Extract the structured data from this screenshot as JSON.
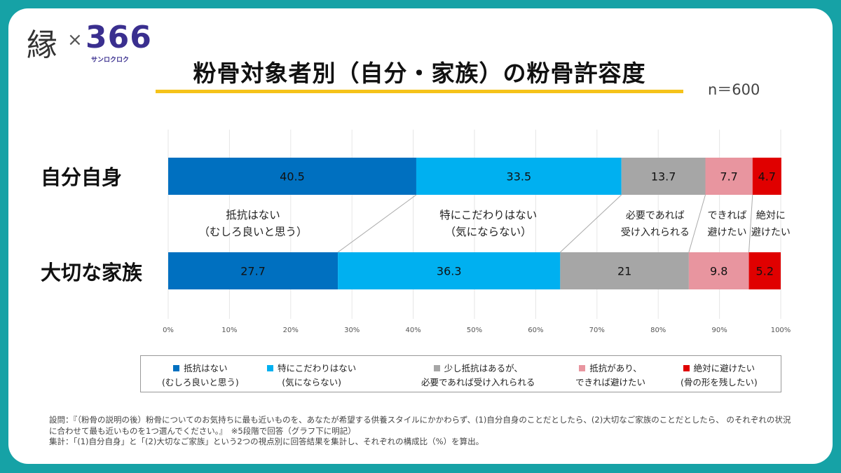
{
  "logo": {
    "kanji": "縁",
    "times": "×",
    "number": "366",
    "kana": "サンロクロク"
  },
  "title": "粉骨対象者別（自分・家族）の粉骨許容度",
  "sample": "n＝600",
  "chart_data": {
    "type": "bar",
    "orientation": "horizontal-stacked-100",
    "title": "粉骨対象者別（自分・家族）の粉骨許容度",
    "categories": [
      "自分自身",
      "大切な家族"
    ],
    "series": [
      {
        "name": "抵抗はない（むしろ良いと思う）",
        "short": [
          "抵抗はない",
          "（むしろ良いと思う）"
        ],
        "legend": [
          "抵抗はない",
          "(むしろ良いと思う)"
        ],
        "color": "#0070c0",
        "values": [
          40.5,
          27.7
        ]
      },
      {
        "name": "特にこだわりはない（気にならない）",
        "short": [
          "特にこだわりはない",
          "（気にならない）"
        ],
        "legend": [
          "特にこだわりはない",
          "(気にならない)"
        ],
        "color": "#00b0f0",
        "values": [
          33.5,
          36.3
        ]
      },
      {
        "name": "少し抵抗はあるが、必要であれば受け入れられる",
        "short": [
          "必要であれば",
          "受け入れられる"
        ],
        "legend": [
          "少し抵抗はあるが、",
          "必要であれば受け入れられる"
        ],
        "color": "#a6a6a6",
        "values": [
          13.7,
          21
        ]
      },
      {
        "name": "抵抗があり、できれば避けたい",
        "short": [
          "できれば",
          "避けたい"
        ],
        "legend": [
          "抵抗があり、",
          "できれば避けたい"
        ],
        "color": "#e8959f",
        "values": [
          7.7,
          9.8
        ]
      },
      {
        "name": "絶対に避けたい（骨の形を残したい）",
        "short": [
          "絶対に",
          "避けたい"
        ],
        "legend": [
          "絶対に避けたい",
          "(骨の形を残したい)"
        ],
        "color": "#e00000",
        "values": [
          4.7,
          5.2
        ]
      }
    ],
    "xticks": [
      "0%",
      "10%",
      "20%",
      "30%",
      "40%",
      "50%",
      "60%",
      "70%",
      "80%",
      "90%",
      "100%"
    ],
    "xlim": [
      0,
      100
    ],
    "grid": true,
    "legend_position": "bottom"
  },
  "footnote": {
    "line1": "設問：『（粉骨の説明の後）粉骨についてのお気持ちに最も近いものを、あなたが希望する供養スタイルにかかわらず、(1)自分自身のことだとしたら、(2)大切なご家族のことだとしたら、 のそれぞれの状況",
    "line2": "に合わせて最も近いものを1つ選んでください。』　※5段階で回答（グラフ下に明記）",
    "line3": "集計：「(1)自分自身」と「(2)大切なご家族」という2つの視点別に回答結果を集計し、それぞれの構成比（%）を算出。"
  }
}
